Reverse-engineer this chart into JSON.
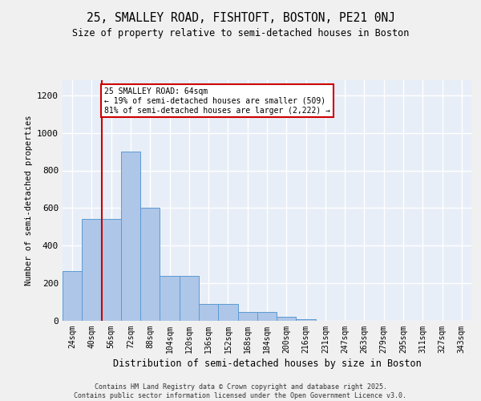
{
  "title_line1": "25, SMALLEY ROAD, FISHTOFT, BOSTON, PE21 0NJ",
  "title_line2": "Size of property relative to semi-detached houses in Boston",
  "xlabel": "Distribution of semi-detached houses by size in Boston",
  "ylabel": "Number of semi-detached properties",
  "bar_categories": [
    "24sqm",
    "40sqm",
    "56sqm",
    "72sqm",
    "88sqm",
    "104sqm",
    "120sqm",
    "136sqm",
    "152sqm",
    "168sqm",
    "184sqm",
    "200sqm",
    "216sqm",
    "231sqm",
    "247sqm",
    "263sqm",
    "279sqm",
    "295sqm",
    "311sqm",
    "327sqm",
    "343sqm"
  ],
  "bar_values": [
    265,
    540,
    540,
    900,
    600,
    240,
    240,
    90,
    90,
    45,
    45,
    20,
    10,
    0,
    0,
    0,
    0,
    0,
    0,
    0,
    0
  ],
  "bar_color": "#aec6e8",
  "bar_edge_color": "#5b9bd5",
  "property_line_x": 1.5,
  "property_size": "64sqm",
  "pct_smaller": 19,
  "count_smaller": 509,
  "pct_larger": 81,
  "count_larger": 2222,
  "annotation_box_color": "#ffffff",
  "annotation_box_edge": "#cc0000",
  "annotation_line_color": "#cc0000",
  "ylim": [
    0,
    1280
  ],
  "yticks": [
    0,
    200,
    400,
    600,
    800,
    1000,
    1200
  ],
  "background_color": "#e8eef7",
  "grid_color": "#ffffff",
  "fig_background": "#f0f0f0",
  "footer_line1": "Contains HM Land Registry data © Crown copyright and database right 2025.",
  "footer_line2": "Contains public sector information licensed under the Open Government Licence v3.0."
}
